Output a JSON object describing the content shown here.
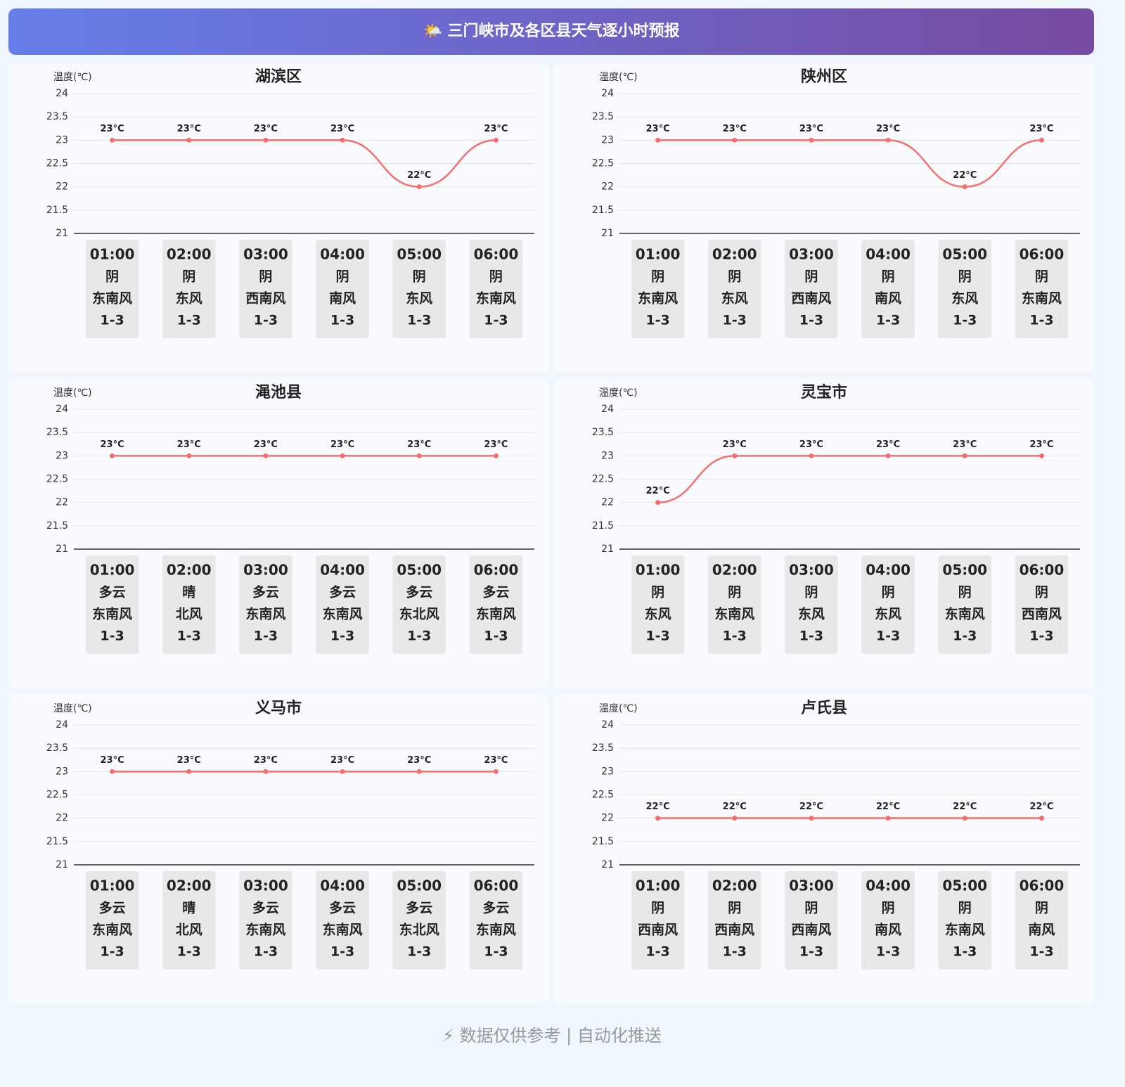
{
  "header": {
    "title": "🌤️ 三门峡市及各区县天气逐小时预报"
  },
  "footer": {
    "text": "⚡ 数据仅供参考 | 自动化推送"
  },
  "chart_data": [
    {
      "type": "line",
      "title": "湖滨区",
      "y_label": "温度(℃)",
      "color": "#f36f6f",
      "categories": [
        "01:00",
        "02:00",
        "03:00",
        "04:00",
        "05:00",
        "06:00"
      ],
      "values": [
        23,
        23,
        23,
        23,
        22,
        23
      ],
      "value_labels": [
        "23°C",
        "23°C",
        "23°C",
        "23°C",
        "22°C",
        "23°C"
      ],
      "weather": [
        "阴",
        "阴",
        "阴",
        "阴",
        "阴",
        "阴"
      ],
      "wind_direction": [
        "东南风",
        "东风",
        "西南风",
        "南风",
        "东风",
        "东南风"
      ],
      "wind_level": [
        "1-3",
        "1-3",
        "1-3",
        "1-3",
        "1-3",
        "1-3"
      ],
      "ylim": [
        21,
        24
      ],
      "yticks": [
        21,
        21.5,
        22,
        22.5,
        23,
        23.5,
        24
      ],
      "grid": true
    },
    {
      "type": "line",
      "title": "陕州区",
      "y_label": "温度(℃)",
      "color": "#f36f6f",
      "categories": [
        "01:00",
        "02:00",
        "03:00",
        "04:00",
        "05:00",
        "06:00"
      ],
      "values": [
        23,
        23,
        23,
        23,
        22,
        23
      ],
      "value_labels": [
        "23°C",
        "23°C",
        "23°C",
        "23°C",
        "22°C",
        "23°C"
      ],
      "weather": [
        "阴",
        "阴",
        "阴",
        "阴",
        "阴",
        "阴"
      ],
      "wind_direction": [
        "东南风",
        "东风",
        "西南风",
        "南风",
        "东风",
        "东南风"
      ],
      "wind_level": [
        "1-3",
        "1-3",
        "1-3",
        "1-3",
        "1-3",
        "1-3"
      ],
      "ylim": [
        21,
        24
      ],
      "yticks": [
        21,
        21.5,
        22,
        22.5,
        23,
        23.5,
        24
      ],
      "grid": true
    },
    {
      "type": "line",
      "title": "渑池县",
      "y_label": "温度(℃)",
      "color": "#f36f6f",
      "categories": [
        "01:00",
        "02:00",
        "03:00",
        "04:00",
        "05:00",
        "06:00"
      ],
      "values": [
        23,
        23,
        23,
        23,
        23,
        23
      ],
      "value_labels": [
        "23°C",
        "23°C",
        "23°C",
        "23°C",
        "23°C",
        "23°C"
      ],
      "weather": [
        "多云",
        "晴",
        "多云",
        "多云",
        "多云",
        "多云"
      ],
      "wind_direction": [
        "东南风",
        "北风",
        "东南风",
        "东南风",
        "东北风",
        "东南风"
      ],
      "wind_level": [
        "1-3",
        "1-3",
        "1-3",
        "1-3",
        "1-3",
        "1-3"
      ],
      "ylim": [
        21,
        24
      ],
      "yticks": [
        21,
        21.5,
        22,
        22.5,
        23,
        23.5,
        24
      ],
      "grid": true
    },
    {
      "type": "line",
      "title": "灵宝市",
      "y_label": "温度(℃)",
      "color": "#f36f6f",
      "categories": [
        "01:00",
        "02:00",
        "03:00",
        "04:00",
        "05:00",
        "06:00"
      ],
      "values": [
        22,
        23,
        23,
        23,
        23,
        23
      ],
      "value_labels": [
        "22°C",
        "23°C",
        "23°C",
        "23°C",
        "23°C",
        "23°C"
      ],
      "weather": [
        "阴",
        "阴",
        "阴",
        "阴",
        "阴",
        "阴"
      ],
      "wind_direction": [
        "东风",
        "东南风",
        "东风",
        "东风",
        "东南风",
        "西南风"
      ],
      "wind_level": [
        "1-3",
        "1-3",
        "1-3",
        "1-3",
        "1-3",
        "1-3"
      ],
      "ylim": [
        21,
        24
      ],
      "yticks": [
        21,
        21.5,
        22,
        22.5,
        23,
        23.5,
        24
      ],
      "grid": true
    },
    {
      "type": "line",
      "title": "义马市",
      "y_label": "温度(℃)",
      "color": "#f36f6f",
      "categories": [
        "01:00",
        "02:00",
        "03:00",
        "04:00",
        "05:00",
        "06:00"
      ],
      "values": [
        23,
        23,
        23,
        23,
        23,
        23
      ],
      "value_labels": [
        "23°C",
        "23°C",
        "23°C",
        "23°C",
        "23°C",
        "23°C"
      ],
      "weather": [
        "多云",
        "晴",
        "多云",
        "多云",
        "多云",
        "多云"
      ],
      "wind_direction": [
        "东南风",
        "北风",
        "东南风",
        "东南风",
        "东北风",
        "东南风"
      ],
      "wind_level": [
        "1-3",
        "1-3",
        "1-3",
        "1-3",
        "1-3",
        "1-3"
      ],
      "ylim": [
        21,
        24
      ],
      "yticks": [
        21,
        21.5,
        22,
        22.5,
        23,
        23.5,
        24
      ],
      "grid": true
    },
    {
      "type": "line",
      "title": "卢氏县",
      "y_label": "温度(℃)",
      "color": "#f36f6f",
      "categories": [
        "01:00",
        "02:00",
        "03:00",
        "04:00",
        "05:00",
        "06:00"
      ],
      "values": [
        22,
        22,
        22,
        22,
        22,
        22
      ],
      "value_labels": [
        "22°C",
        "22°C",
        "22°C",
        "22°C",
        "22°C",
        "22°C"
      ],
      "weather": [
        "阴",
        "阴",
        "阴",
        "阴",
        "阴",
        "阴"
      ],
      "wind_direction": [
        "西南风",
        "西南风",
        "西南风",
        "南风",
        "东南风",
        "南风"
      ],
      "wind_level": [
        "1-3",
        "1-3",
        "1-3",
        "1-3",
        "1-3",
        "1-3"
      ],
      "ylim": [
        21,
        24
      ],
      "yticks": [
        21,
        21.5,
        22,
        22.5,
        23,
        23.5,
        24
      ],
      "grid": true
    }
  ]
}
